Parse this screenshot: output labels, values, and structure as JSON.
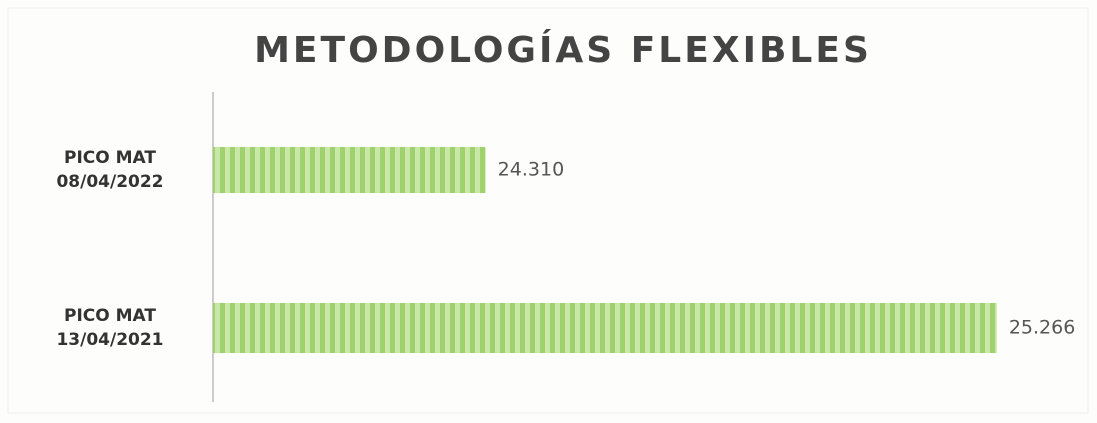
{
  "chart_data": {
    "type": "barh",
    "title": "METODOLOGÍAS FLEXIBLES",
    "categories": [
      "PICO MAT 08/04/2022",
      "PICO MAT 13/04/2021"
    ],
    "values": [
      24310,
      25266
    ],
    "value_labels": [
      "24.310",
      "25.266"
    ],
    "color": "#9fd16e",
    "xlim": [
      23800,
      25300
    ]
  }
}
